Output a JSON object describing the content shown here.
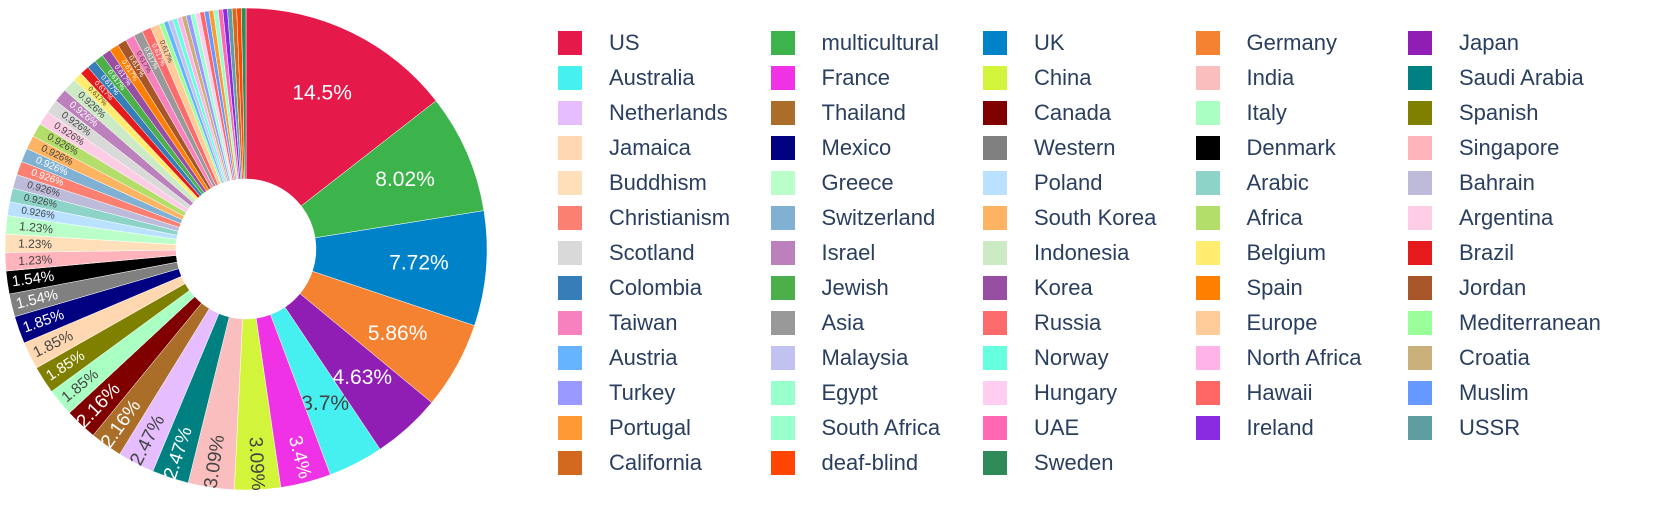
{
  "chart_data": {
    "type": "pie",
    "hole": true,
    "sort": "descending",
    "direction": "clockwise",
    "legend_placement": "right",
    "legend_columns": 5,
    "labels": [
      "US",
      "multicultural",
      "UK",
      "Germany",
      "Japan",
      "Australia",
      "France",
      "China",
      "India",
      "Saudi Arabia",
      "Netherlands",
      "Thailand",
      "Canada",
      "Italy",
      "Spanish",
      "Jamaica",
      "Mexico",
      "Western",
      "Denmark",
      "Singapore",
      "Buddhism",
      "Greece",
      "Poland",
      "Arabic",
      "Bahrain",
      "Christianism",
      "Switzerland",
      "South Korea",
      "Africa",
      "Argentina",
      "Scotland",
      "Israel",
      "Indonesia",
      "Belgium",
      "Brazil",
      "Colombia",
      "Jewish",
      "Korea",
      "Spain",
      "Jordan",
      "Taiwan",
      "Asia",
      "Russia",
      "Europe",
      "Mediterranean",
      "Austria",
      "Malaysia",
      "Norway",
      "North Africa",
      "Croatia",
      "Turkey",
      "Egypt",
      "Hungary",
      "Hawaii",
      "Muslim",
      "Portugal",
      "South Africa",
      "UAE",
      "Ireland",
      "USSR",
      "California",
      "deaf-blind",
      "Sweden"
    ],
    "colors": [
      "#e6194b",
      "#3cb44b",
      "#0082c8",
      "#f58231",
      "#911eb4",
      "#46f0f0",
      "#f032e6",
      "#d2f53c",
      "#fabebe",
      "#008080",
      "#e6beff",
      "#aa6e28",
      "#800000",
      "#aaffc3",
      "#808000",
      "#ffd8b1",
      "#000080",
      "#808080",
      "#000000",
      "#ffb3ba",
      "#ffdfba",
      "#baffc9",
      "#bae1ff",
      "#8dd3c7",
      "#bebada",
      "#fb8072",
      "#80b1d3",
      "#fdb462",
      "#b3de69",
      "#fccde5",
      "#d9d9d9",
      "#bc80bd",
      "#ccebc5",
      "#ffed6f",
      "#e41a1c",
      "#377eb8",
      "#4daf4a",
      "#984ea3",
      "#ff7f00",
      "#a65628",
      "#f781bf",
      "#999999",
      "#fc6b6b",
      "#ffcc99",
      "#99ff99",
      "#66b3ff",
      "#c2c2f0",
      "#66ffe0",
      "#ffb3e6",
      "#c9b07a",
      "#9999ff",
      "#99ffcc",
      "#ffccf2",
      "#ff6666",
      "#6699ff",
      "#ff9933",
      "#99ffcc",
      "#ff69b4",
      "#8a2be2",
      "#5f9ea0",
      "#d2691e",
      "#ff4500",
      "#2e8b57"
    ],
    "values": [
      14.5,
      8.02,
      7.72,
      5.86,
      4.63,
      3.7,
      3.4,
      3.09,
      3.09,
      2.47,
      2.47,
      2.16,
      2.16,
      1.85,
      1.85,
      1.85,
      1.85,
      1.54,
      1.54,
      1.23,
      1.23,
      1.23,
      0.926,
      0.926,
      0.926,
      0.926,
      0.926,
      0.926,
      0.926,
      0.926,
      0.926,
      0.926,
      0.926,
      0.617,
      0.617,
      0.617,
      0.617,
      0.617,
      0.617,
      0.617,
      0.617,
      0.617,
      0.617,
      0.617,
      0.309,
      0.309,
      0.309,
      0.309,
      0.309,
      0.309,
      0.309,
      0.309,
      0.309,
      0.309,
      0.309,
      0.309,
      0.309,
      0.309,
      0.309,
      0.309,
      0.309,
      0.309,
      0.309
    ],
    "value_labels": [
      "14.5%",
      "8.02%",
      "7.72%",
      "5.86%",
      "4.63%",
      "3.7%",
      "3.4%",
      "3.09%",
      "3.09%",
      "2.47%",
      "2.47%",
      "2.16%",
      "2.16%",
      "1.85%",
      "1.85%",
      "1.85%",
      "1.85%",
      "1.54%",
      "1.54%",
      "1.23%",
      "1.23%",
      "1.23%",
      "0.926%",
      "0.926%",
      "0.926%",
      "0.926%",
      "0.926%",
      "0.926%",
      "0.926%",
      "0.926%",
      "0.926%",
      "0.926%",
      "0.926%",
      "0.617%",
      "0.617%",
      "0.617%",
      "0.617%",
      "0.617%",
      "0.617%",
      "0.617%",
      "0.617%",
      "0.617%",
      "0.617%",
      "0.617%",
      "",
      "",
      "",
      "",
      "",
      "",
      "",
      "",
      "",
      "",
      "",
      "",
      "",
      "",
      "",
      "",
      "",
      "",
      ""
    ]
  }
}
